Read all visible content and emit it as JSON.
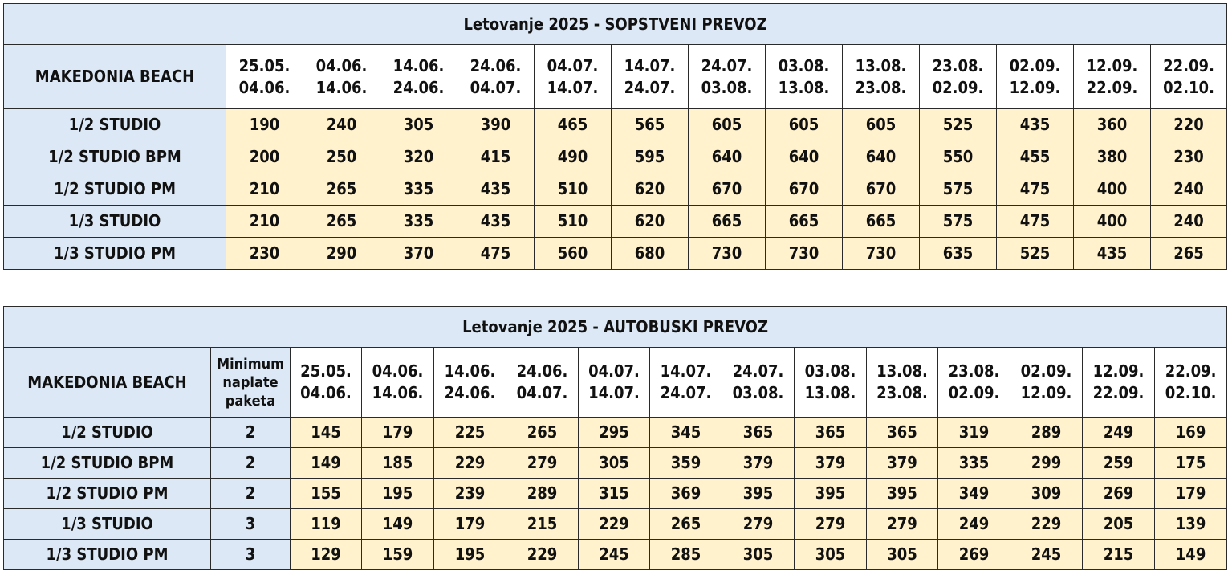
{
  "table1": {
    "title": "Letovanje 2025 - SOPSTVENI PREVOZ",
    "hotel": "MAKEDONIA BEACH",
    "periods": [
      {
        "from": "25.05.",
        "to": "04.06."
      },
      {
        "from": "04.06.",
        "to": "14.06."
      },
      {
        "from": "14.06.",
        "to": "24.06."
      },
      {
        "from": "24.06.",
        "to": "04.07."
      },
      {
        "from": "04.07.",
        "to": "14.07."
      },
      {
        "from": "14.07.",
        "to": "24.07."
      },
      {
        "from": "24.07.",
        "to": "03.08."
      },
      {
        "from": "03.08.",
        "to": "13.08."
      },
      {
        "from": "13.08.",
        "to": "23.08."
      },
      {
        "from": "23.08.",
        "to": "02.09."
      },
      {
        "from": "02.09.",
        "to": "12.09."
      },
      {
        "from": "12.09.",
        "to": "22.09."
      },
      {
        "from": "22.09.",
        "to": "02.10."
      }
    ],
    "rows": [
      {
        "label": "1/2 STUDIO",
        "prices": [
          "190",
          "240",
          "305",
          "390",
          "465",
          "565",
          "605",
          "605",
          "605",
          "525",
          "435",
          "360",
          "220"
        ]
      },
      {
        "label": "1/2 STUDIO BPM",
        "prices": [
          "200",
          "250",
          "320",
          "415",
          "490",
          "595",
          "640",
          "640",
          "640",
          "550",
          "455",
          "380",
          "230"
        ]
      },
      {
        "label": "1/2 STUDIO PM",
        "prices": [
          "210",
          "265",
          "335",
          "435",
          "510",
          "620",
          "670",
          "670",
          "670",
          "575",
          "475",
          "400",
          "240"
        ]
      },
      {
        "label": "1/3 STUDIO",
        "prices": [
          "210",
          "265",
          "335",
          "435",
          "510",
          "620",
          "665",
          "665",
          "665",
          "575",
          "475",
          "400",
          "240"
        ]
      },
      {
        "label": "1/3 STUDIO PM",
        "prices": [
          "230",
          "290",
          "370",
          "475",
          "560",
          "680",
          "730",
          "730",
          "730",
          "635",
          "525",
          "435",
          "265"
        ]
      }
    ]
  },
  "table2": {
    "title": "Letovanje 2025 - AUTOBUSKI PREVOZ",
    "hotel": "MAKEDONIA BEACH",
    "min_header": {
      "line1": "Minimum",
      "line2": "naplate",
      "line3": "paketa"
    },
    "periods": [
      {
        "from": "25.05.",
        "to": "04.06."
      },
      {
        "from": "04.06.",
        "to": "14.06."
      },
      {
        "from": "14.06.",
        "to": "24.06."
      },
      {
        "from": "24.06.",
        "to": "04.07."
      },
      {
        "from": "04.07.",
        "to": "14.07."
      },
      {
        "from": "14.07.",
        "to": "24.07."
      },
      {
        "from": "24.07.",
        "to": "03.08."
      },
      {
        "from": "03.08.",
        "to": "13.08."
      },
      {
        "from": "13.08.",
        "to": "23.08."
      },
      {
        "from": "23.08.",
        "to": "02.09."
      },
      {
        "from": "02.09.",
        "to": "12.09."
      },
      {
        "from": "12.09.",
        "to": "22.09."
      },
      {
        "from": "22.09.",
        "to": "02.10."
      }
    ],
    "rows": [
      {
        "label": "1/2 STUDIO",
        "min": "2",
        "prices": [
          "145",
          "179",
          "225",
          "265",
          "295",
          "345",
          "365",
          "365",
          "365",
          "319",
          "289",
          "249",
          "169"
        ]
      },
      {
        "label": "1/2 STUDIO BPM",
        "min": "2",
        "prices": [
          "149",
          "185",
          "229",
          "279",
          "305",
          "359",
          "379",
          "379",
          "379",
          "335",
          "299",
          "259",
          "175"
        ]
      },
      {
        "label": "1/2 STUDIO PM",
        "min": "2",
        "prices": [
          "155",
          "195",
          "239",
          "289",
          "315",
          "369",
          "395",
          "395",
          "395",
          "349",
          "309",
          "269",
          "179"
        ]
      },
      {
        "label": "1/3 STUDIO",
        "min": "3",
        "prices": [
          "119",
          "149",
          "179",
          "215",
          "229",
          "265",
          "279",
          "279",
          "279",
          "249",
          "229",
          "205",
          "139"
        ]
      },
      {
        "label": "1/3 STUDIO PM",
        "min": "3",
        "prices": [
          "129",
          "159",
          "195",
          "229",
          "245",
          "285",
          "305",
          "305",
          "305",
          "269",
          "245",
          "215",
          "149"
        ]
      }
    ]
  }
}
